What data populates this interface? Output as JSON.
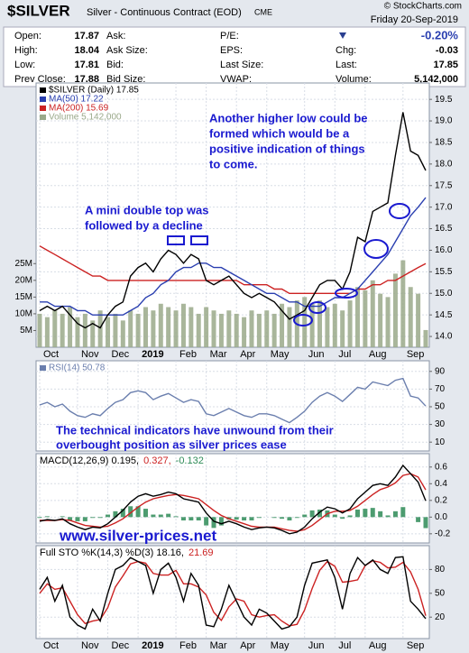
{
  "header": {
    "symbol": "$SILVER",
    "description": "Silver - Continuous Contract (EOD)",
    "exchange": "CME",
    "credit": "© StockCharts.com",
    "date": "Friday  20-Sep-2019",
    "rows": [
      [
        {
          "label": "Open:",
          "value": "17.87"
        },
        {
          "label": "Ask:"
        },
        {
          "label": "P/E:"
        },
        {
          "value": "-0.20%"
        }
      ],
      [
        {
          "label": "High:",
          "value": "18.04"
        },
        {
          "label": "Ask Size:"
        },
        {
          "label": "EPS:"
        },
        {
          "label": "Chg:",
          "value": "-0.03"
        }
      ],
      [
        {
          "label": "Low:",
          "value": "17.81"
        },
        {
          "label": "Bid:"
        },
        {
          "label": "Last Size:"
        },
        {
          "label": "Last:",
          "value": "17.85"
        }
      ],
      [
        {
          "label": "Prev Close:",
          "value": "17.88"
        },
        {
          "label": "Bid Size:"
        },
        {
          "label": "VWAP:"
        },
        {
          "label": "Volume:",
          "value": "5,142,000"
        }
      ]
    ]
  },
  "chart_data": [
    {
      "type": "line",
      "legend": "stacked",
      "grid": true,
      "categories": [
        "Oct",
        null,
        null,
        null,
        null,
        "Nov",
        null,
        null,
        null,
        "Dec",
        null,
        null,
        null,
        "2019",
        null,
        null,
        null,
        null,
        "Feb",
        null,
        null,
        null,
        "Mar",
        null,
        null,
        null,
        "Apr",
        null,
        null,
        null,
        "May",
        null,
        null,
        null,
        null,
        "Jun",
        null,
        null,
        null,
        "Jul",
        null,
        null,
        null,
        "Aug",
        null,
        null,
        null,
        null,
        "Sep",
        null,
        null,
        null
      ],
      "ylim": [
        13.75,
        19.88
      ],
      "yticks": [
        {
          "value": 14,
          "label": "14.0"
        },
        {
          "value": 14.5,
          "label": "14.5"
        },
        {
          "value": 15,
          "label": "15.0"
        },
        {
          "value": 15.5,
          "label": "15.5"
        },
        {
          "value": 16,
          "label": "16.0"
        },
        {
          "value": 16.5,
          "label": "16.5"
        },
        {
          "value": 17,
          "label": "17.0"
        },
        {
          "value": 17.5,
          "label": "17.5"
        },
        {
          "value": 18,
          "label": "18.0"
        },
        {
          "value": 18.5,
          "label": "18.5"
        },
        {
          "value": 19,
          "label": "19.0"
        },
        {
          "value": 19.5,
          "label": "19.5"
        }
      ],
      "y2lim": [
        0,
        79
      ],
      "y2ticks": [
        {
          "value": 5,
          "label": "5M"
        },
        {
          "value": 10,
          "label": "10M"
        },
        {
          "value": 15,
          "label": "15M"
        },
        {
          "value": 20,
          "label": "20M"
        },
        {
          "value": 25,
          "label": "25M"
        }
      ],
      "series": [
        {
          "name": "Volume 5,142,000",
          "type": "bar",
          "axis": "y2",
          "color": "#9aa98a",
          "values": [
            10,
            9,
            11,
            10,
            12,
            9,
            10,
            8,
            11,
            9,
            10,
            8,
            11,
            10,
            12,
            11,
            13,
            12,
            11,
            13,
            12,
            10,
            12,
            11,
            10,
            11,
            10,
            9,
            11,
            10,
            11,
            10,
            13,
            12,
            14,
            15,
            13,
            14,
            12,
            13,
            11,
            14,
            18,
            17,
            20,
            16,
            15,
            22,
            26,
            18,
            16,
            5.142
          ]
        },
        {
          "name": "MA(200) 15.69",
          "color": "#cc2222",
          "values": [
            16.1,
            16.0,
            15.9,
            15.8,
            15.7,
            15.6,
            15.5,
            15.4,
            15.4,
            15.3,
            15.3,
            15.3,
            15.3,
            15.3,
            15.3,
            15.3,
            15.3,
            15.3,
            15.3,
            15.3,
            15.3,
            15.3,
            15.3,
            15.3,
            15.3,
            15.3,
            15.3,
            15.2,
            15.2,
            15.2,
            15.2,
            15.1,
            15.1,
            15.0,
            15.0,
            15.0,
            15.0,
            15.0,
            15.0,
            15.0,
            15.0,
            15.0,
            15.1,
            15.1,
            15.2,
            15.2,
            15.3,
            15.3,
            15.4,
            15.5,
            15.6,
            15.69
          ]
        },
        {
          "name": "MA(50) 17.22",
          "color": "#2a3fb0",
          "values": [
            14.8,
            14.8,
            14.7,
            14.7,
            14.7,
            14.6,
            14.6,
            14.5,
            14.5,
            14.5,
            14.5,
            14.5,
            14.6,
            14.7,
            14.9,
            15.0,
            15.2,
            15.3,
            15.5,
            15.6,
            15.6,
            15.7,
            15.7,
            15.6,
            15.6,
            15.5,
            15.4,
            15.3,
            15.2,
            15.1,
            15.0,
            15.0,
            14.9,
            14.8,
            14.8,
            14.7,
            14.7,
            14.7,
            14.8,
            14.9,
            14.9,
            15.0,
            15.1,
            15.3,
            15.5,
            15.7,
            15.9,
            16.2,
            16.5,
            16.8,
            17.0,
            17.22
          ]
        },
        {
          "name": "$SILVER (Daily) 17.85",
          "color": "#000000",
          "values": [
            14.6,
            14.7,
            14.6,
            14.7,
            14.5,
            14.3,
            14.2,
            14.3,
            14.2,
            14.5,
            14.7,
            14.8,
            15.4,
            15.6,
            15.7,
            15.5,
            15.8,
            16.0,
            15.9,
            15.7,
            15.9,
            15.8,
            15.3,
            15.2,
            15.3,
            15.4,
            15.2,
            15.0,
            14.9,
            15.0,
            14.9,
            14.8,
            14.6,
            14.4,
            14.5,
            14.6,
            14.9,
            15.2,
            15.3,
            15.3,
            15.1,
            15.5,
            16.3,
            16.2,
            16.9,
            17.0,
            17.1,
            18.2,
            19.2,
            18.3,
            18.2,
            17.85
          ]
        }
      ],
      "annotations": [
        [
          "Another higher low could be",
          " formed which would be a",
          "positive indication of things",
          "to come."
        ],
        [
          "A mini double top was",
          "followed by a decline"
        ]
      ]
    },
    {
      "type": "line",
      "legend": "stacked",
      "grid": true,
      "ylim": [
        0,
        102
      ],
      "yticks": [
        90,
        70,
        50,
        30,
        10
      ],
      "series": [
        {
          "name": "RSI(14) 50.78",
          "color": "#6b7fae",
          "values": [
            52,
            55,
            50,
            53,
            45,
            40,
            38,
            42,
            40,
            48,
            55,
            58,
            66,
            68,
            66,
            58,
            62,
            65,
            60,
            55,
            58,
            56,
            42,
            40,
            44,
            48,
            44,
            40,
            38,
            42,
            42,
            40,
            36,
            32,
            38,
            45,
            55,
            62,
            66,
            62,
            56,
            64,
            72,
            70,
            78,
            76,
            74,
            80,
            82,
            62,
            60,
            50.78
          ]
        }
      ],
      "annotations": [
        [
          "The technical indicators have unwound from their",
          "overbought position as silver prices ease"
        ]
      ]
    },
    {
      "type": "line",
      "legend": "inline",
      "grid": true,
      "ylim": [
        -0.31,
        0.76
      ],
      "yticks": [
        0.6,
        0.4,
        0.2,
        {
          "value": 0,
          "label": "0.0"
        },
        -0.2
      ],
      "series": [
        {
          "name": "-0.132",
          "type": "bar",
          "color": "#2e8b57",
          "values": [
            -0.01,
            0.01,
            0.0,
            0.01,
            -0.04,
            -0.05,
            -0.05,
            -0.01,
            -0.01,
            0.03,
            0.07,
            0.1,
            0.13,
            0.13,
            0.1,
            0.03,
            0.03,
            0.04,
            0.01,
            -0.04,
            -0.04,
            -0.04,
            -0.1,
            -0.13,
            -0.1,
            -0.03,
            -0.03,
            -0.04,
            -0.04,
            -0.01,
            0.0,
            -0.01,
            -0.02,
            -0.04,
            -0.01,
            0.03,
            0.08,
            0.09,
            0.08,
            0.03,
            -0.02,
            0.02,
            0.09,
            0.1,
            0.11,
            0.07,
            0.02,
            0.07,
            0.12,
            0.0,
            -0.06,
            -0.132
          ]
        },
        {
          "name": "0.327,",
          "color": "#cc2222",
          "values": [
            -0.04,
            -0.04,
            -0.04,
            -0.03,
            -0.04,
            -0.07,
            -0.1,
            -0.11,
            -0.12,
            -0.11,
            -0.07,
            -0.02,
            0.05,
            0.12,
            0.18,
            0.22,
            0.24,
            0.26,
            0.27,
            0.26,
            0.24,
            0.22,
            0.15,
            0.08,
            0.02,
            -0.02,
            -0.05,
            -0.08,
            -0.11,
            -0.12,
            -0.12,
            -0.12,
            -0.14,
            -0.16,
            -0.17,
            -0.15,
            -0.1,
            -0.03,
            0.04,
            0.07,
            0.07,
            0.08,
            0.13,
            0.2,
            0.27,
            0.33,
            0.36,
            0.41,
            0.5,
            0.52,
            0.48,
            0.327
          ]
        },
        {
          "name": "MACD(12,26,9) 0.195,",
          "color": "#000000",
          "values": [
            -0.05,
            -0.03,
            -0.04,
            -0.02,
            -0.08,
            -0.12,
            -0.15,
            -0.12,
            -0.13,
            -0.08,
            0.0,
            0.08,
            0.18,
            0.25,
            0.28,
            0.25,
            0.27,
            0.3,
            0.28,
            0.22,
            0.2,
            0.18,
            0.05,
            -0.05,
            -0.08,
            -0.05,
            -0.08,
            -0.12,
            -0.15,
            -0.13,
            -0.12,
            -0.13,
            -0.16,
            -0.2,
            -0.18,
            -0.12,
            -0.02,
            0.06,
            0.12,
            0.1,
            0.05,
            0.1,
            0.22,
            0.3,
            0.38,
            0.4,
            0.38,
            0.48,
            0.62,
            0.52,
            0.42,
            0.195
          ]
        }
      ],
      "annotations": [
        [
          "www.silver-prices.net"
        ]
      ]
    },
    {
      "type": "line",
      "legend": "inline",
      "grid": true,
      "ylim": [
        -7,
        110
      ],
      "yticks": [
        80,
        50,
        20
      ],
      "series": [
        {
          "name": "21.69",
          "color": "#cc2222",
          "values": [
            50,
            62,
            55,
            57,
            40,
            23,
            12,
            15,
            17,
            32,
            58,
            72,
            87,
            90,
            88,
            75,
            73,
            73,
            79,
            62,
            62,
            58,
            48,
            26,
            16,
            33,
            43,
            40,
            23,
            20,
            22,
            23,
            15,
            9,
            11,
            29,
            56,
            79,
            90,
            84,
            64,
            65,
            67,
            85,
            91,
            89,
            82,
            83,
            89,
            77,
            55,
            21.69
          ]
        },
        {
          "name": "Full STO %K(14,3) %D(3) 18.16,",
          "color": "#000000",
          "values": [
            55,
            70,
            40,
            60,
            20,
            10,
            5,
            30,
            15,
            50,
            80,
            85,
            95,
            90,
            85,
            50,
            80,
            88,
            70,
            40,
            75,
            60,
            10,
            8,
            30,
            60,
            40,
            20,
            10,
            30,
            25,
            15,
            5,
            8,
            20,
            60,
            88,
            90,
            92,
            70,
            30,
            75,
            95,
            85,
            92,
            80,
            75,
            95,
            96,
            40,
            30,
            18.16
          ]
        }
      ]
    }
  ]
}
